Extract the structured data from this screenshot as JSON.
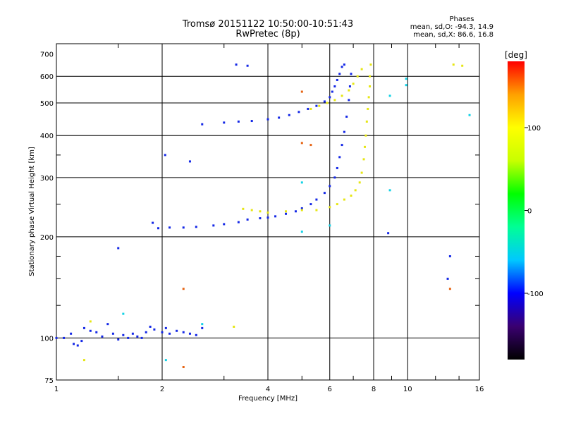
{
  "header": {
    "title_line1": "Tromsø 20151122 10:50:00-10:51:43",
    "title_line2": "RwPretec (8p)"
  },
  "phase_stats": {
    "title": "Phases",
    "o_line": "mean, sd,O: -94.3, 14.9",
    "x_line": "mean, sd,X: 86.6, 16.8"
  },
  "colorbar": {
    "unit": "[deg]",
    "ticks": [
      "100",
      "0",
      "-100"
    ],
    "tick_values": [
      100,
      0,
      -100
    ],
    "range": [
      -180,
      180
    ],
    "colors": [
      "#000000",
      "#3a0070",
      "#0000ff",
      "#00c8ff",
      "#00ff96",
      "#00ff00",
      "#c8ff00",
      "#ffff00",
      "#ffa000",
      "#ff0000"
    ]
  },
  "chart_data": {
    "type": "scatter",
    "title": "Tromsø 20151122 10:50:00-10:51:43",
    "subtitle": "RwPretec (8p)",
    "xlabel": "Frequency [MHz]",
    "ylabel": "Stationary phase Virtual Height [km]",
    "x_scale": "log",
    "y_scale": "log",
    "xlim": [
      1,
      16
    ],
    "ylim": [
      75,
      750
    ],
    "x_ticks": [
      1,
      2,
      4,
      6,
      8,
      10,
      16
    ],
    "y_ticks": [
      75,
      100,
      200,
      300,
      400,
      500,
      600,
      700
    ],
    "x_minor": [
      1.5,
      3,
      5,
      7,
      9,
      12,
      14
    ],
    "y_minor_ticks": [
      125,
      150,
      175,
      250,
      350
    ],
    "x_gridlines": [
      2,
      4,
      6,
      8,
      10
    ],
    "y_gridlines": [
      100,
      200,
      300,
      400,
      500,
      600
    ],
    "grid": true,
    "series": [
      {
        "color": "#1428e6",
        "points": [
          [
            1.0,
            100
          ],
          [
            1.05,
            100
          ],
          [
            1.1,
            103
          ],
          [
            1.12,
            96
          ],
          [
            1.15,
            95
          ],
          [
            1.18,
            98
          ],
          [
            1.2,
            107
          ],
          [
            1.25,
            105
          ],
          [
            1.3,
            104
          ],
          [
            1.35,
            101
          ],
          [
            1.4,
            110
          ],
          [
            1.45,
            103
          ],
          [
            1.5,
            99
          ],
          [
            1.55,
            102
          ],
          [
            1.6,
            100
          ],
          [
            1.65,
            103
          ],
          [
            1.7,
            101
          ],
          [
            1.75,
            100
          ],
          [
            1.8,
            104
          ],
          [
            1.85,
            108
          ],
          [
            1.9,
            106
          ],
          [
            2.0,
            104
          ],
          [
            2.05,
            107
          ],
          [
            2.1,
            103
          ],
          [
            2.2,
            105
          ],
          [
            2.3,
            104
          ],
          [
            2.4,
            103
          ],
          [
            2.5,
            102
          ],
          [
            2.6,
            107
          ],
          [
            2.04,
            350
          ],
          [
            2.4,
            335
          ],
          [
            1.88,
            220
          ],
          [
            1.95,
            212
          ],
          [
            2.1,
            213
          ],
          [
            2.3,
            213
          ],
          [
            2.5,
            214
          ],
          [
            2.8,
            216
          ],
          [
            3.0,
            218
          ],
          [
            3.3,
            221
          ],
          [
            3.5,
            225
          ],
          [
            3.8,
            227
          ],
          [
            4.0,
            228
          ],
          [
            4.2,
            230
          ],
          [
            4.5,
            234
          ],
          [
            4.8,
            238
          ],
          [
            5.0,
            243
          ],
          [
            5.3,
            250
          ],
          [
            5.5,
            258
          ],
          [
            5.8,
            270
          ],
          [
            6.0,
            283
          ],
          [
            6.2,
            300
          ],
          [
            6.3,
            320
          ],
          [
            6.4,
            345
          ],
          [
            6.5,
            375
          ],
          [
            6.6,
            410
          ],
          [
            6.7,
            455
          ],
          [
            6.8,
            510
          ],
          [
            6.85,
            560
          ],
          [
            6.9,
            610
          ],
          [
            2.6,
            432
          ],
          [
            3.0,
            437
          ],
          [
            3.3,
            440
          ],
          [
            3.6,
            442
          ],
          [
            4.0,
            447
          ],
          [
            4.3,
            452
          ],
          [
            4.6,
            460
          ],
          [
            4.9,
            470
          ],
          [
            5.2,
            480
          ],
          [
            5.5,
            490
          ],
          [
            5.8,
            505
          ],
          [
            6.0,
            520
          ],
          [
            6.1,
            540
          ],
          [
            6.2,
            560
          ],
          [
            6.3,
            585
          ],
          [
            6.4,
            610
          ],
          [
            6.5,
            640
          ],
          [
            6.6,
            650
          ],
          [
            3.25,
            650
          ],
          [
            3.5,
            645
          ],
          [
            1.5,
            185
          ],
          [
            13,
            150
          ],
          [
            13.2,
            175
          ],
          [
            8.8,
            205
          ]
        ]
      },
      {
        "color": "#e6e614",
        "points": [
          [
            3.4,
            242
          ],
          [
            3.6,
            240
          ],
          [
            3.8,
            238
          ],
          [
            4.0,
            236
          ],
          [
            4.5,
            238
          ],
          [
            5.0,
            240
          ],
          [
            5.5,
            240
          ],
          [
            6.0,
            245
          ],
          [
            6.3,
            250
          ],
          [
            6.6,
            258
          ],
          [
            6.9,
            265
          ],
          [
            7.1,
            275
          ],
          [
            7.3,
            290
          ],
          [
            7.4,
            310
          ],
          [
            7.5,
            340
          ],
          [
            7.55,
            370
          ],
          [
            7.6,
            400
          ],
          [
            7.65,
            440
          ],
          [
            7.7,
            480
          ],
          [
            7.75,
            520
          ],
          [
            7.8,
            560
          ],
          [
            7.8,
            600
          ],
          [
            7.85,
            650
          ],
          [
            5.3,
            480
          ],
          [
            5.6,
            490
          ],
          [
            5.9,
            500
          ],
          [
            6.2,
            510
          ],
          [
            6.5,
            525
          ],
          [
            6.8,
            545
          ],
          [
            7.0,
            570
          ],
          [
            7.2,
            600
          ],
          [
            7.4,
            630
          ],
          [
            3.2,
            108
          ],
          [
            1.2,
            86
          ],
          [
            1.25,
            112
          ],
          [
            13.5,
            650
          ],
          [
            14.3,
            645
          ]
        ]
      },
      {
        "color": "#14d2e6",
        "points": [
          [
            5.0,
            207
          ],
          [
            5.0,
            290
          ],
          [
            6.0,
            216
          ],
          [
            9.9,
            590
          ],
          [
            9.9,
            565
          ],
          [
            8.9,
            525
          ],
          [
            8.9,
            275
          ],
          [
            15,
            460
          ],
          [
            2.05,
            86
          ],
          [
            2.6,
            110
          ],
          [
            1.55,
            118
          ]
        ]
      },
      {
        "color": "#e66414",
        "points": [
          [
            5.0,
            380
          ],
          [
            5.3,
            375
          ],
          [
            2.3,
            140
          ],
          [
            13.2,
            140
          ],
          [
            5.0,
            540
          ],
          [
            2.3,
            82
          ]
        ]
      }
    ]
  }
}
